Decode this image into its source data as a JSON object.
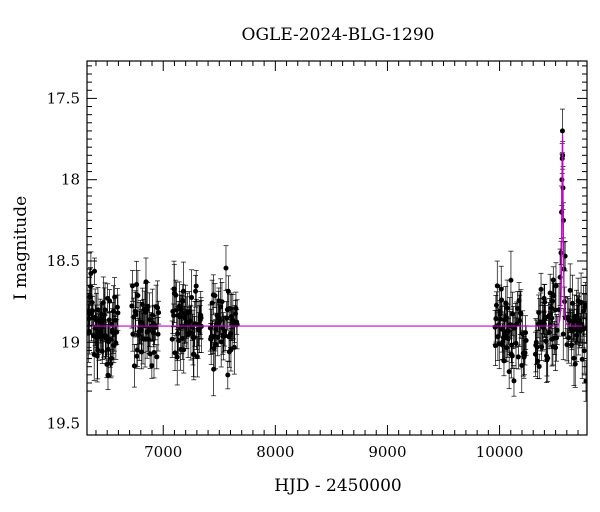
{
  "chart_data": {
    "type": "scatter",
    "title": "OGLE-2024-BLG-1290",
    "xlabel": "HJD - 2450000",
    "ylabel": "I magnitude",
    "xlim": [
      6320,
      10780
    ],
    "ylim": [
      19.57,
      17.27
    ],
    "y_inverted": true,
    "x_ticks": [
      7000,
      8000,
      9000,
      10000
    ],
    "y_ticks": [
      17.5,
      18,
      18.5,
      19,
      19.5
    ],
    "x_tick_labels": [
      "7000",
      "8000",
      "9000",
      "10000"
    ],
    "y_tick_labels": [
      "17.5",
      "18",
      "18.5",
      "19",
      "19.5"
    ],
    "grid": false,
    "legend": "none",
    "colors": {
      "points": "#000000",
      "model": "#cc00cc"
    },
    "observing_seasons": [
      {
        "start": 6330,
        "end": 6600
      },
      {
        "start": 6720,
        "end": 6960
      },
      {
        "start": 7080,
        "end": 7340
      },
      {
        "start": 7420,
        "end": 7660
      },
      {
        "start": 9960,
        "end": 10240
      },
      {
        "start": 10320,
        "end": 10780
      }
    ],
    "baseline_mag": 18.9,
    "scatter_sigma": 0.12,
    "errorbar_halfwidth_range": [
      0.07,
      0.18
    ],
    "event_points": [
      {
        "x": 10530,
        "y": 18.8
      },
      {
        "x": 10540,
        "y": 18.6
      },
      {
        "x": 10548,
        "y": 18.45
      },
      {
        "x": 10553,
        "y": 18.2
      },
      {
        "x": 10556,
        "y": 18.0
      },
      {
        "x": 10559,
        "y": 17.87
      },
      {
        "x": 10561,
        "y": 17.7
      },
      {
        "x": 10563,
        "y": 17.85
      },
      {
        "x": 10566,
        "y": 18.05
      },
      {
        "x": 10570,
        "y": 18.25
      },
      {
        "x": 10575,
        "y": 18.55
      },
      {
        "x": 10580,
        "y": 18.75
      },
      {
        "x": 10585,
        "y": 18.47
      },
      {
        "x": 10590,
        "y": 18.85
      },
      {
        "x": 10568,
        "y": 18.95
      }
    ],
    "model": {
      "t0": 10562,
      "tE": 11,
      "u0": 0.5,
      "baseline": 18.9,
      "peak_mag": 17.72
    }
  }
}
